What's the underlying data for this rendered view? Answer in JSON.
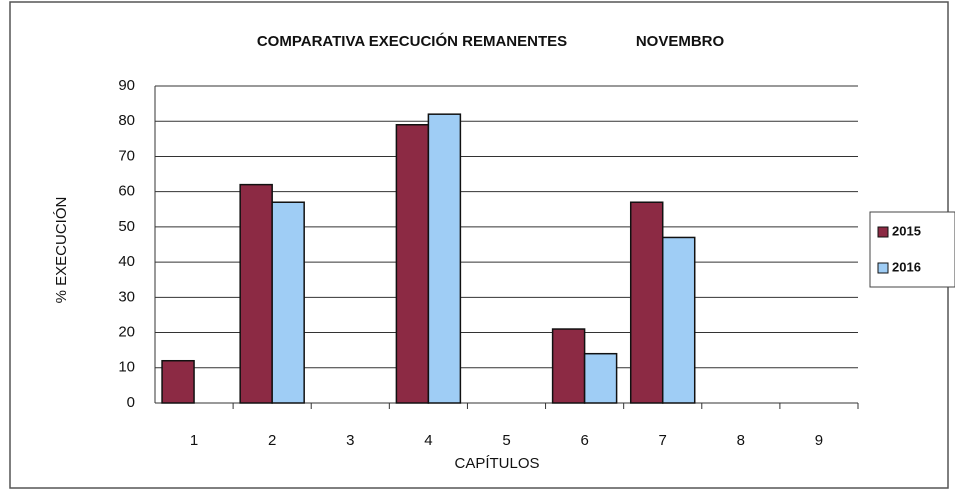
{
  "chart_data": {
    "type": "bar",
    "title": "COMPARATIVA EXECUCIÓN REMANENTES",
    "subtitle": "NOVEMBRO",
    "x_label": "CAPÍTULOS",
    "y_label": "% EXECUCIÓN",
    "categories": [
      "1",
      "2",
      "3",
      "4",
      "5",
      "6",
      "7",
      "8",
      "9"
    ],
    "series": [
      {
        "name": "2015",
        "color": "#8c2a44",
        "values": [
          12,
          62,
          0,
          79,
          0,
          21,
          57,
          0,
          0
        ]
      },
      {
        "name": "2016",
        "color": "#9fcdf5",
        "values": [
          0,
          57,
          0,
          82,
          0,
          14,
          47,
          0,
          0
        ]
      }
    ],
    "ylim": [
      0,
      90
    ],
    "yticks": [
      0,
      10,
      20,
      30,
      40,
      50,
      60,
      70,
      80,
      90
    ],
    "grid": true,
    "legend": "right"
  }
}
